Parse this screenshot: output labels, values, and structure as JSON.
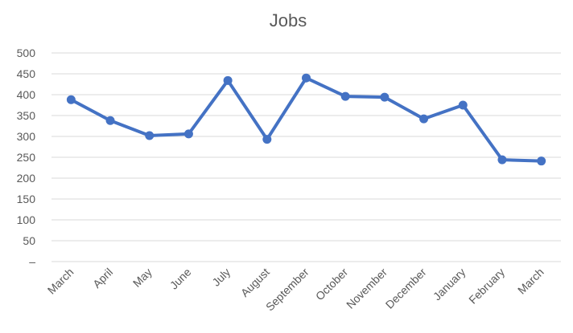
{
  "chart_data": {
    "type": "line",
    "title": "Jobs",
    "xlabel": "",
    "ylabel": "",
    "categories": [
      "March",
      "April",
      "May",
      "June",
      "July",
      "August",
      "September",
      "October",
      "November",
      "December",
      "January",
      "February",
      "March"
    ],
    "series": [
      {
        "values": [
          388,
          338,
          302,
          306,
          434,
          293,
          440,
          396,
          394,
          342,
          375,
          244,
          241
        ],
        "color": "#4472C4"
      }
    ],
    "ylim": [
      0,
      500
    ],
    "yticks": [
      "–",
      "50",
      "100",
      "150",
      "200",
      "250",
      "300",
      "350",
      "400",
      "450",
      "500"
    ],
    "ytick_values": [
      0,
      50,
      100,
      150,
      200,
      250,
      300,
      350,
      400,
      450,
      500
    ],
    "grid": true,
    "legend": "none"
  }
}
